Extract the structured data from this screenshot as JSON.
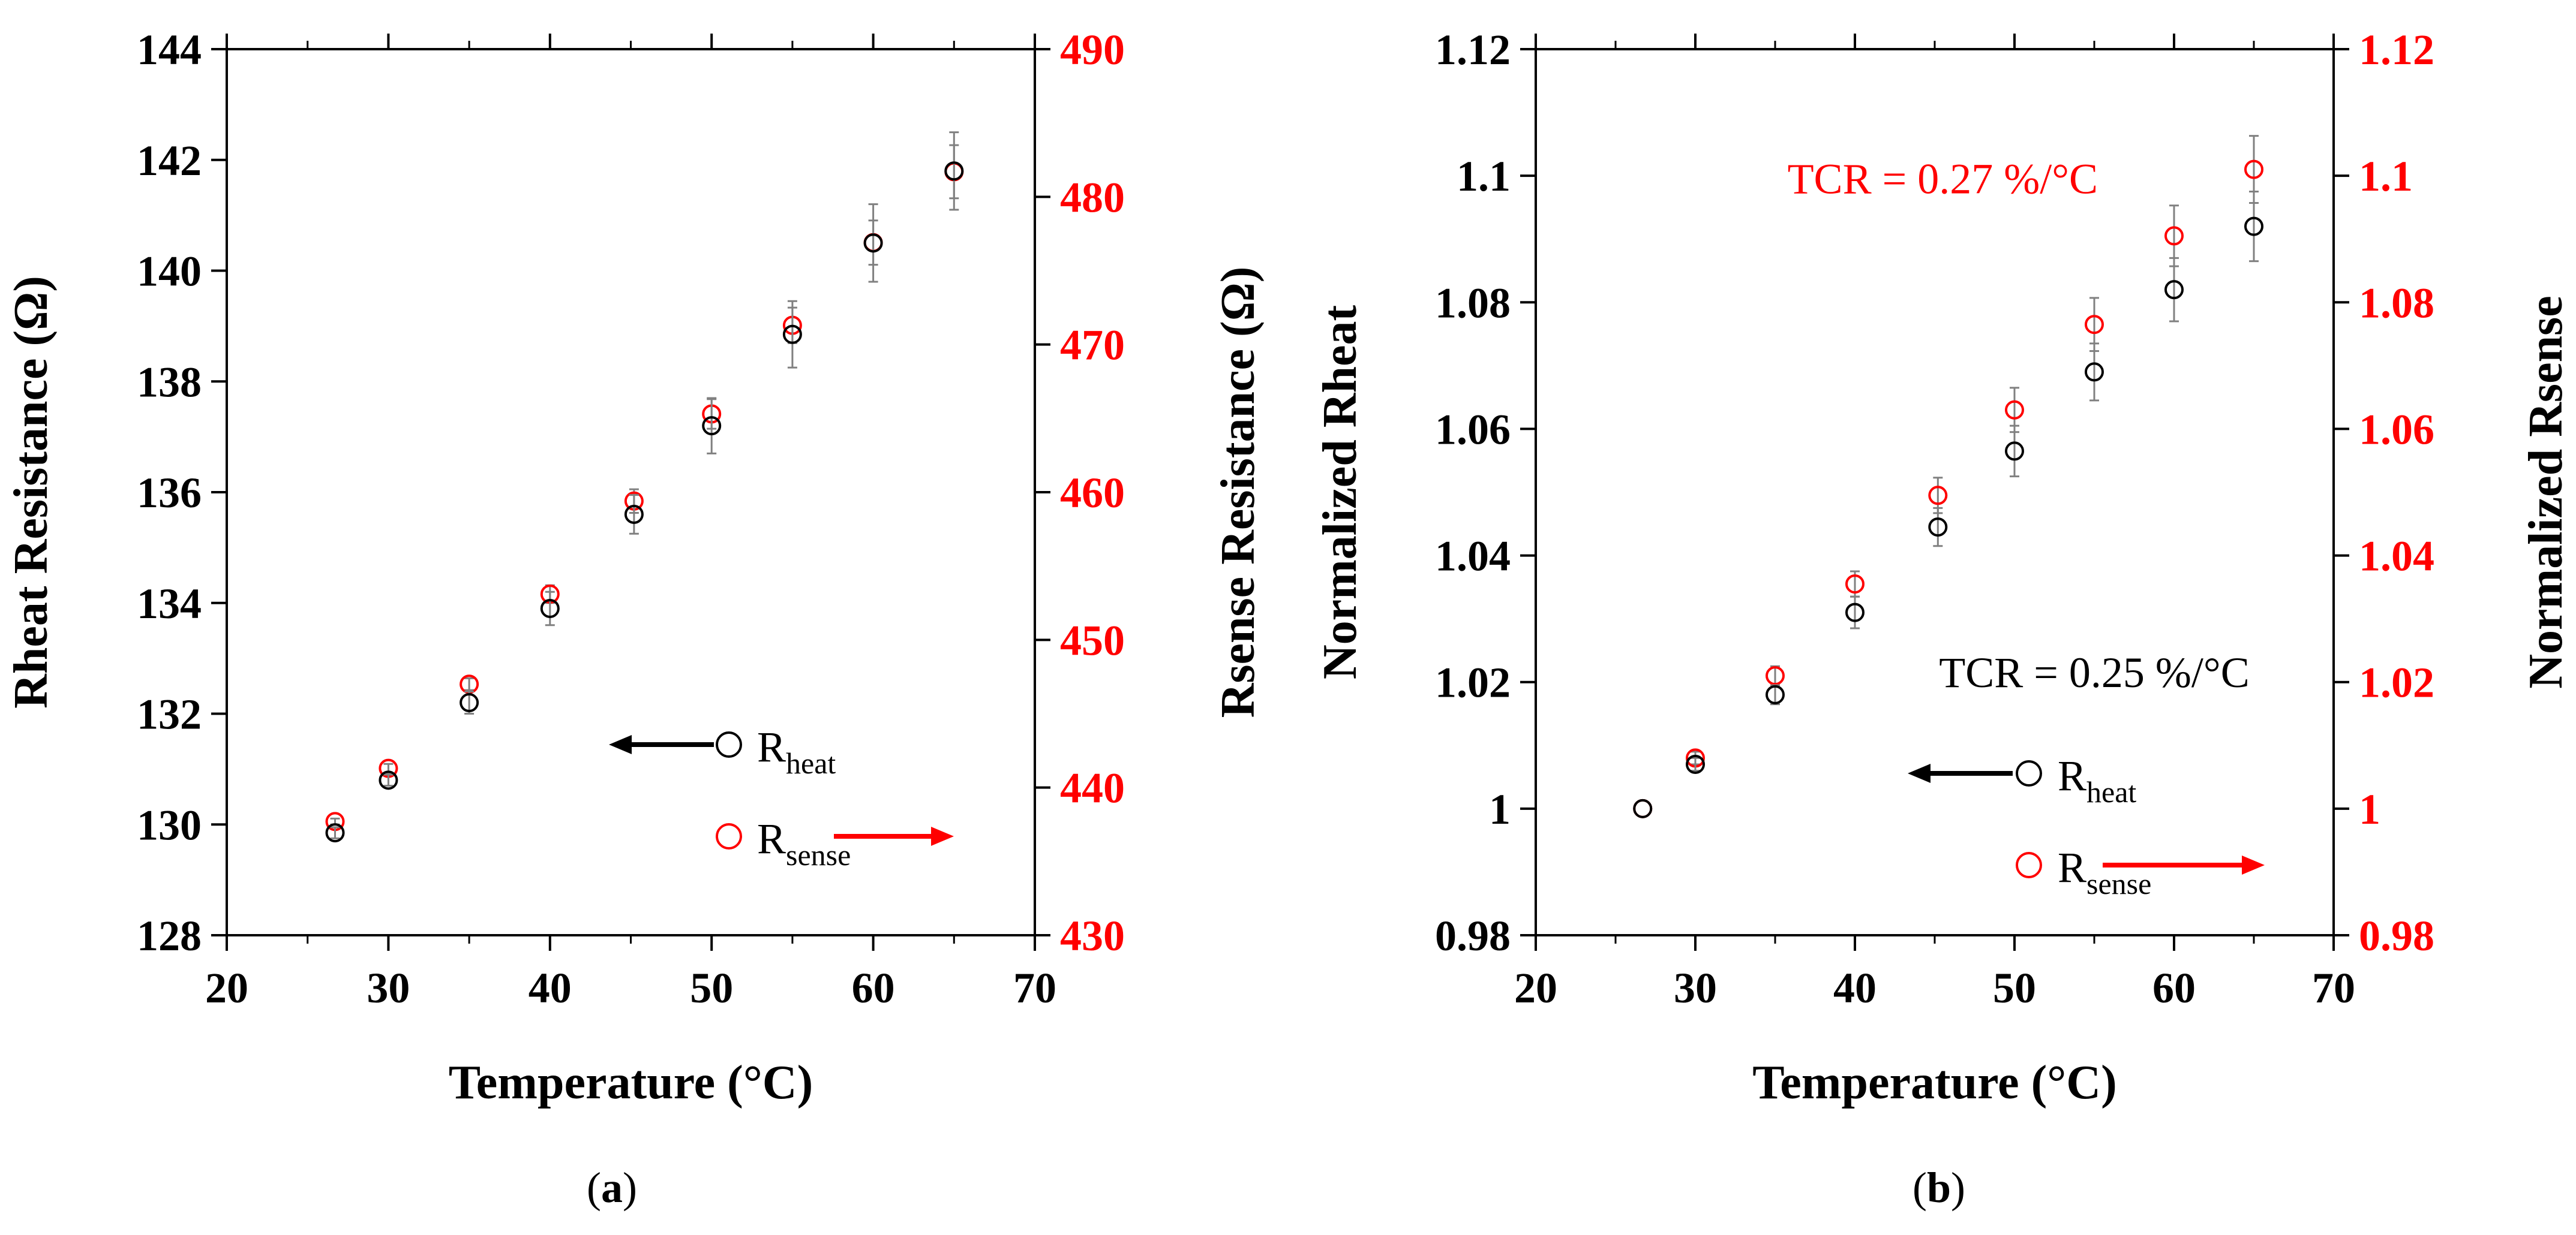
{
  "figure": {
    "panel_a_label": {
      "open": "(",
      "letter": "a",
      "close": ")"
    },
    "panel_b_label": {
      "open": "(",
      "letter": "b",
      "close": ")"
    }
  },
  "colors": {
    "heat": "#000000",
    "sense": "#ff0000",
    "error_bar": "#808080"
  },
  "chart_data": [
    {
      "type": "scatter",
      "panel": "a",
      "xlabel": "Temperature (°C)",
      "ylabel_left": "Rheat Resistance (Ω)",
      "ylabel_right": "Rsense Resistance (Ω)",
      "xlim": [
        20,
        70
      ],
      "ylim_left": [
        128,
        144
      ],
      "ylim_right": [
        430,
        490
      ],
      "xticks": [
        20,
        30,
        40,
        50,
        60,
        70
      ],
      "xticks_minor": [
        25,
        35,
        45,
        55,
        65
      ],
      "yticks_left": [
        128,
        130,
        132,
        134,
        136,
        138,
        140,
        142,
        144
      ],
      "yticks_right": [
        430,
        440,
        450,
        460,
        470,
        480,
        490
      ],
      "tick_labels_x": [
        "20",
        "30",
        "40",
        "50",
        "60",
        "70"
      ],
      "tick_labels_left": [
        "128",
        "130",
        "132",
        "134",
        "136",
        "138",
        "140",
        "142",
        "144"
      ],
      "tick_labels_right": [
        "430",
        "440",
        "450",
        "460",
        "470",
        "480",
        "490"
      ],
      "grid": false,
      "legend": [
        {
          "series": "Rheat",
          "main": "R",
          "sub": "heat",
          "axis": "left",
          "arrow": "left"
        },
        {
          "series": "Rsense",
          "main": "R",
          "sub": "sense",
          "axis": "right",
          "arrow": "right"
        }
      ],
      "series": [
        {
          "name": "Rheat",
          "axis": "left",
          "color": "#000000",
          "x": [
            26.7,
            30.0,
            35.0,
            40.0,
            45.2,
            50.0,
            55.0,
            60.0,
            65.0
          ],
          "y": [
            129.85,
            130.8,
            132.2,
            133.9,
            135.6,
            137.2,
            138.85,
            140.5,
            141.8
          ],
          "yerr": [
            0.1,
            0.1,
            0.2,
            0.3,
            0.35,
            0.5,
            0.6,
            0.7,
            0.7
          ]
        },
        {
          "name": "Rsense",
          "axis": "right",
          "color": "#ff0000",
          "x": [
            26.7,
            30.0,
            35.0,
            40.0,
            45.2,
            50.0,
            55.0,
            60.0,
            65.0
          ],
          "y": [
            437.7,
            441.3,
            447.0,
            453.1,
            459.4,
            465.3,
            471.3,
            476.9,
            481.7
          ],
          "yerr": [
            0.2,
            0.3,
            0.4,
            0.6,
            0.8,
            1.0,
            1.2,
            1.5,
            1.8
          ]
        }
      ]
    },
    {
      "type": "scatter",
      "panel": "b",
      "xlabel": "Temperature (°C)",
      "ylabel_left": "Normalized Rheat",
      "ylabel_right": "Normalized Rsense",
      "xlim": [
        20,
        70
      ],
      "ylim_left": [
        0.98,
        1.12
      ],
      "ylim_right": [
        0.98,
        1.12
      ],
      "xticks": [
        20,
        30,
        40,
        50,
        60,
        70
      ],
      "xticks_minor": [
        25,
        35,
        45,
        55,
        65
      ],
      "yticks_left": [
        0.98,
        1.0,
        1.02,
        1.04,
        1.06,
        1.08,
        1.1,
        1.12
      ],
      "yticks_right": [
        0.98,
        1.0,
        1.02,
        1.04,
        1.06,
        1.08,
        1.1,
        1.12
      ],
      "tick_labels_x": [
        "20",
        "30",
        "40",
        "50",
        "60",
        "70"
      ],
      "tick_labels_left": [
        "0.98",
        "1",
        "1.02",
        "1.04",
        "1.06",
        "1.08",
        "1.1",
        "1.12"
      ],
      "tick_labels_right": [
        "0.98",
        "1",
        "1.02",
        "1.04",
        "1.06",
        "1.08",
        "1.1",
        "1.12"
      ],
      "grid": false,
      "legend": [
        {
          "series": "Rheat",
          "main": "R",
          "sub": "heat",
          "axis": "left",
          "arrow": "left"
        },
        {
          "series": "Rsense",
          "main": "R",
          "sub": "sense",
          "axis": "right",
          "arrow": "right"
        }
      ],
      "annotations": [
        {
          "text": "TCR = 0.27 %/°C",
          "color": "#ff0000",
          "x": 45.5,
          "y": 1.0995
        },
        {
          "text": "TCR = 0.25 %/°C",
          "color": "#000000",
          "x": 55.0,
          "y": 1.0215
        }
      ],
      "series": [
        {
          "name": "Rheat",
          "axis": "left",
          "color": "#000000",
          "x": [
            26.7,
            30.0,
            35.0,
            40.0,
            45.2,
            50.0,
            55.0,
            60.0,
            65.0
          ],
          "y": [
            1.0,
            1.007,
            1.018,
            1.031,
            1.0445,
            1.0565,
            1.069,
            1.082,
            1.092
          ],
          "yerr": [
            0.0,
            0.001,
            0.0015,
            0.0025,
            0.003,
            0.004,
            0.0045,
            0.005,
            0.0055
          ]
        },
        {
          "name": "Rsense",
          "axis": "right",
          "color": "#ff0000",
          "x": [
            26.7,
            30.0,
            35.0,
            40.0,
            45.2,
            50.0,
            55.0,
            60.0,
            65.0
          ],
          "y": [
            1.0,
            1.008,
            1.021,
            1.0355,
            1.0495,
            1.063,
            1.0765,
            1.0905,
            1.101
          ],
          "yerr": [
            0.0,
            0.001,
            0.0015,
            0.002,
            0.0028,
            0.0035,
            0.0042,
            0.0048,
            0.0053
          ]
        }
      ]
    }
  ]
}
